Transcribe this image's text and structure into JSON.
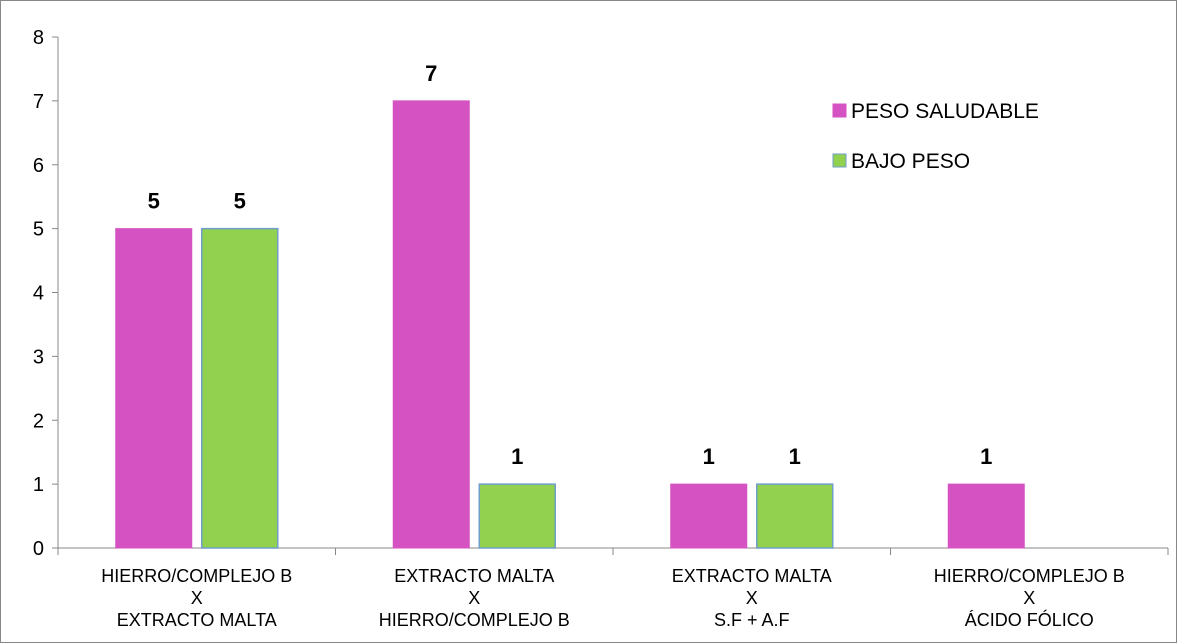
{
  "chart_data": {
    "type": "bar",
    "categories": [
      [
        "HIERRO/COMPLEJO B",
        "X",
        "EXTRACTO MALTA"
      ],
      [
        "EXTRACTO MALTA",
        "X",
        "HIERRO/COMPLEJO B"
      ],
      [
        "EXTRACTO MALTA",
        "X",
        "S.F + A.F"
      ],
      [
        "HIERRO/COMPLEJO B",
        "X",
        "ÁCIDO FÓLICO"
      ]
    ],
    "series": [
      {
        "name": "PESO SALUDABLE",
        "color": "#d452c1",
        "values": [
          5,
          7,
          1,
          1
        ]
      },
      {
        "name": "BAJO PESO",
        "color": "#92d050",
        "values": [
          5,
          1,
          1,
          null
        ]
      }
    ],
    "ylim": [
      0,
      8
    ],
    "yticks": [
      0,
      1,
      2,
      3,
      4,
      5,
      6,
      7,
      8
    ],
    "title": "",
    "xlabel": "",
    "ylabel": "",
    "grid": false,
    "legend_position": "top-right",
    "data_labels": true
  }
}
